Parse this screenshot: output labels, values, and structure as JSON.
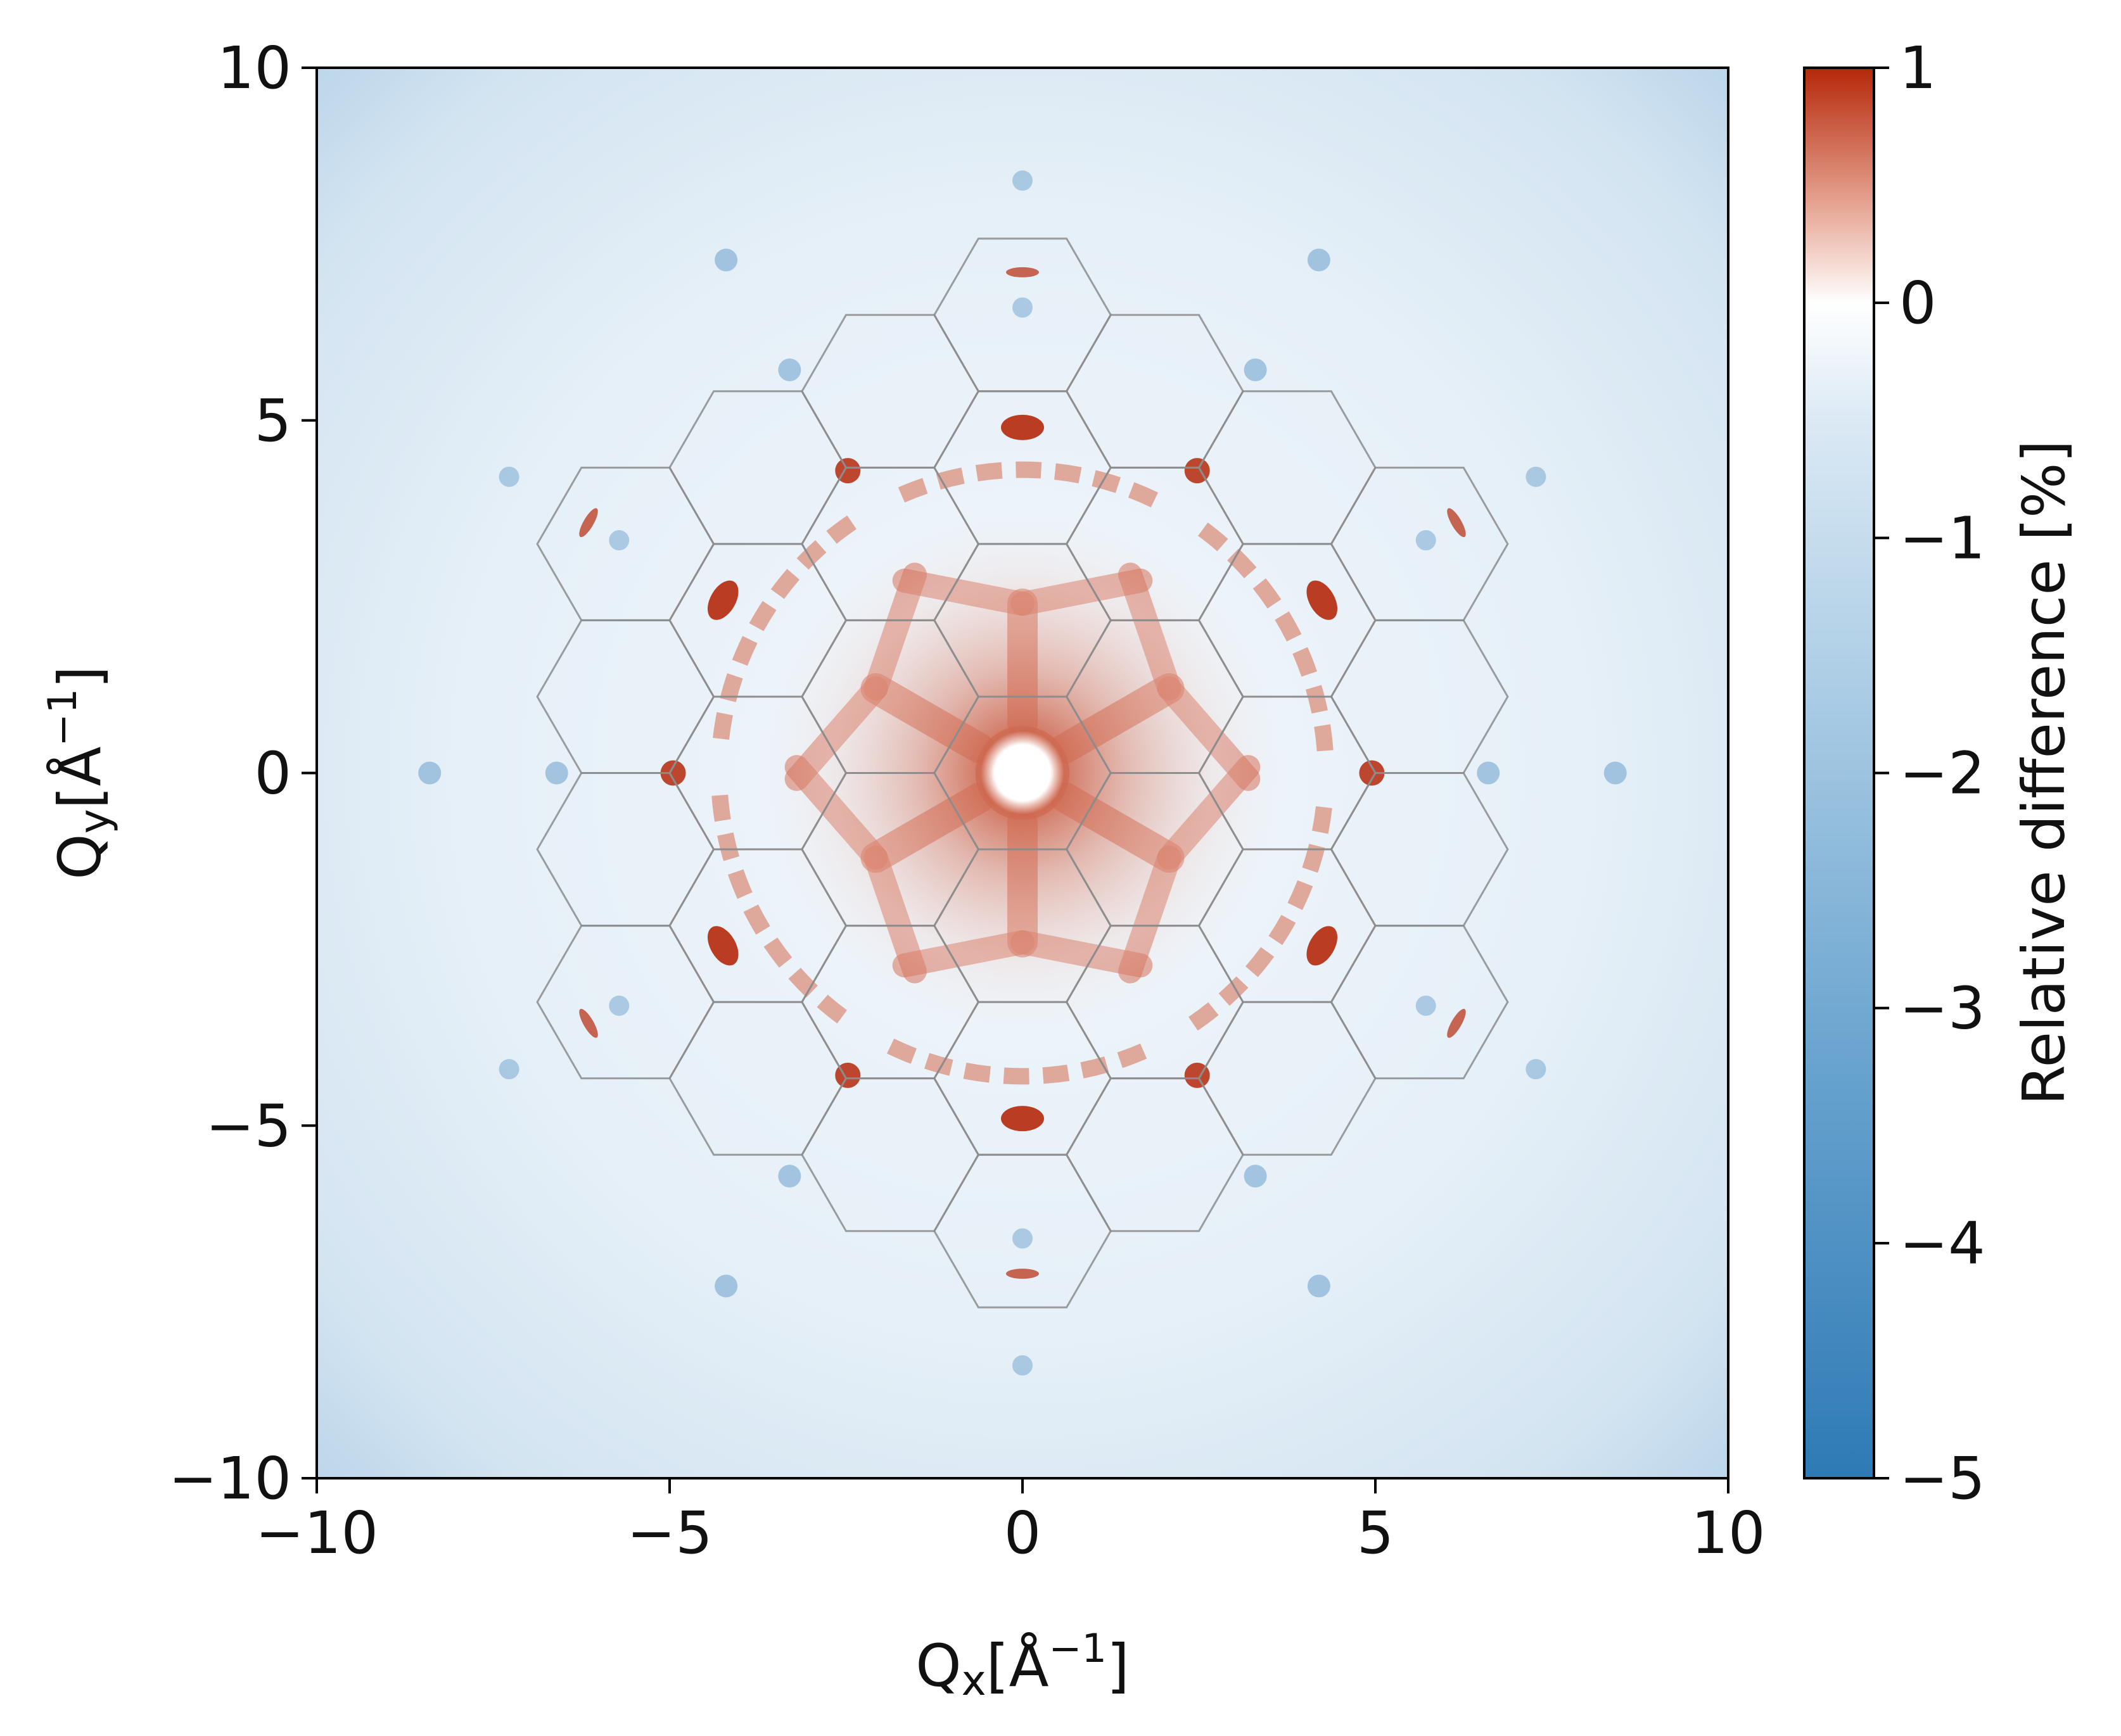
{
  "chart_data": {
    "type": "heatmap",
    "title": "",
    "xlabel": "Q",
    "xlabel_sub": "x",
    "xlabel_unit": "[Å",
    "xlabel_unit_sup": "−1",
    "xlabel_unit_close": "]",
    "ylabel": "Q",
    "ylabel_sub": "y",
    "ylabel_unit": "[Å",
    "ylabel_unit_sup": "−1",
    "ylabel_unit_close": "]",
    "xlim": [
      -10,
      10
    ],
    "ylim": [
      -10,
      10
    ],
    "xticks": [
      -10,
      -5,
      0,
      5,
      10
    ],
    "yticks": [
      -10,
      -5,
      0,
      5,
      10
    ],
    "xtick_labels": [
      "−10",
      "−5",
      "0",
      "5",
      "10"
    ],
    "ytick_labels": [
      "−10",
      "−5",
      "0",
      "5",
      "10"
    ],
    "grid": false,
    "overlay": {
      "type": "hexagonal Brillouin-zone grid",
      "color": "#8c8c8c",
      "center_to_vertex": 1.25,
      "lattice_spacing": 2.165,
      "shells": 3
    },
    "colorbar": {
      "label": "Relative difference [%]",
      "min": -5,
      "max": 1,
      "ticks": [
        1,
        0,
        -1,
        -2,
        -3,
        -4,
        -5
      ],
      "tick_labels": [
        "1",
        "0",
        "−1",
        "−2",
        "−3",
        "−4",
        "−5"
      ],
      "colors": {
        "min": "#2e7ab5",
        "mid_low": "#9cc4e0",
        "zero": "#ffffff",
        "max": "#b5280a"
      }
    }
  }
}
